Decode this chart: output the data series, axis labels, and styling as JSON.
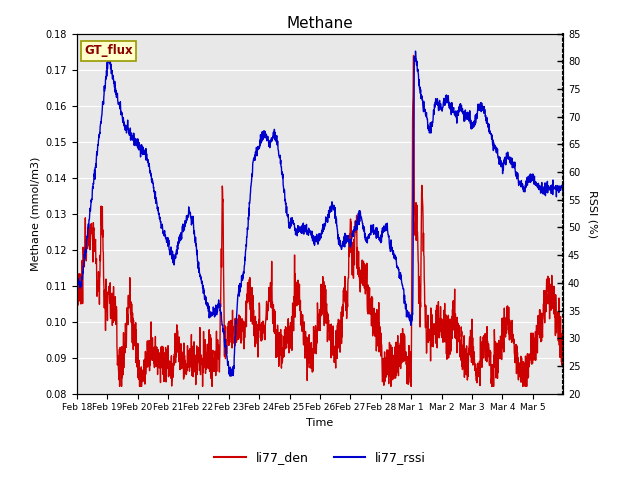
{
  "title": "Methane",
  "ylabel_left": "Methane (mmol/m3)",
  "ylabel_right": "RSSI (%)",
  "xlabel": "Time",
  "ylim_left": [
    0.08,
    0.18
  ],
  "ylim_right": [
    20,
    85
  ],
  "yticks_left": [
    0.08,
    0.09,
    0.1,
    0.11,
    0.12,
    0.13,
    0.14,
    0.15,
    0.16,
    0.17,
    0.18
  ],
  "yticks_right": [
    20,
    25,
    30,
    35,
    40,
    45,
    50,
    55,
    60,
    65,
    70,
    75,
    80,
    85
  ],
  "xtick_labels": [
    "Feb 18",
    "Feb 19",
    "Feb 20",
    "Feb 21",
    "Feb 22",
    "Feb 23",
    "Feb 24",
    "Feb 25",
    "Feb 26",
    "Feb 27",
    "Feb 28",
    "Mar 1",
    "Mar 2",
    "Mar 3",
    "Mar 4",
    "Mar 5"
  ],
  "color_red": "#cc0000",
  "color_blue": "#0000cc",
  "legend_labels": [
    "li77_den",
    "li77_rssi"
  ],
  "gt_flux_label": "GT_flux",
  "gt_flux_bg": "#ffffcc",
  "gt_flux_border": "#999900",
  "background_color": "#e8e8e8",
  "fig_bg": "#ffffff",
  "linewidth": 1.0
}
